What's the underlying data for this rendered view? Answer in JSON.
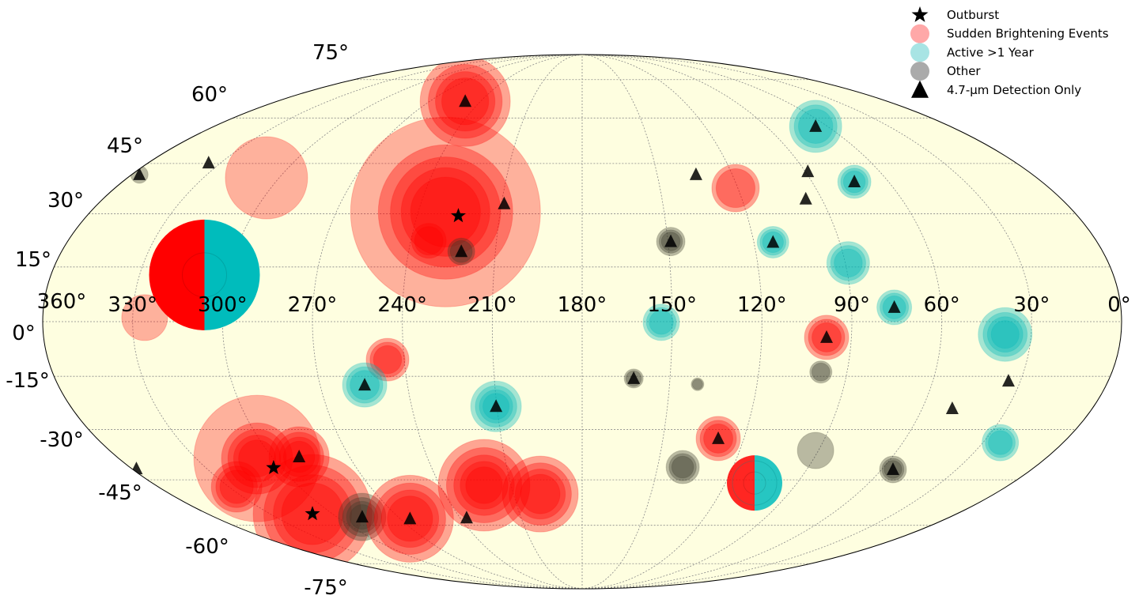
{
  "chart_data": {
    "type": "scatter",
    "projection": "mollweide",
    "grid": true,
    "x_reversed": true,
    "lon_ticks": [
      "360°",
      "330°",
      "300°",
      "270°",
      "240°",
      "210°",
      "180°",
      "150°",
      "120°",
      "90°",
      "60°",
      "30°",
      "0°"
    ],
    "lat_ticks": [
      "75°",
      "60°",
      "45°",
      "30°",
      "15°",
      "0°",
      "-15°",
      "-30°",
      "-45°",
      "-60°",
      "-75°"
    ],
    "legend": {
      "placement": "top-right",
      "entries": [
        {
          "label": "Outburst",
          "symbol": "star",
          "color": "#000000"
        },
        {
          "label": "Sudden Brightening Events",
          "symbol": "circle",
          "color": "#ffa8a8"
        },
        {
          "label": "Active >1 Year",
          "symbol": "circle",
          "color": "#a8e4e4"
        },
        {
          "label": "Other",
          "symbol": "circle",
          "color": "#aaaaaa"
        },
        {
          "label": "4.7-μm Detection Only",
          "symbol": "triangle",
          "color": "#000000"
        }
      ]
    },
    "colors": {
      "sudden": "#ff0000",
      "active": "#00b8b8",
      "other": "#3a3a2a",
      "background": "#fefee0"
    },
    "sources": [
      {
        "lon": 249,
        "lat": 66.1,
        "type": "sudden",
        "size": 57,
        "rings": 4
      },
      {
        "lon": 305,
        "lat": 40.6,
        "type": "sudden",
        "size": 52,
        "rings": 1
      },
      {
        "lon": 230,
        "lat": 30.5,
        "type": "sudden",
        "size": 120,
        "rings": 1
      },
      {
        "lon": 230,
        "lat": 30.5,
        "type": "sudden",
        "size": 85,
        "rings": 4
      },
      {
        "lon": 233.7,
        "lat": 22.3,
        "type": "sudden",
        "size": 22,
        "rings": 2
      },
      {
        "lon": 221.8,
        "lat": 19.3,
        "type": "other",
        "size": 17,
        "rings": 2
      },
      {
        "lon": 308,
        "lat": 12.8,
        "type": "split",
        "size": 70,
        "rings": 1
      },
      {
        "lon": 326,
        "lat": 1.1,
        "type": "sudden",
        "size": 29,
        "rings": 1
      },
      {
        "lon": 357,
        "lat": 41.6,
        "type": "other",
        "size": 11,
        "rings": 1
      },
      {
        "lon": 120.9,
        "lat": 37.5,
        "type": "sudden",
        "size": 30,
        "rings": 2
      },
      {
        "lon": 65.8,
        "lat": 57.1,
        "type": "active",
        "size": 33,
        "rings": 3
      },
      {
        "lon": 73.4,
        "lat": 39.4,
        "type": "active",
        "size": 21,
        "rings": 3
      },
      {
        "lon": 149,
        "lat": 22.1,
        "type": "other",
        "size": 18,
        "rings": 3
      },
      {
        "lon": 113.3,
        "lat": 21.9,
        "type": "active",
        "size": 20,
        "rings": 3
      },
      {
        "lon": 89,
        "lat": 16.1,
        "type": "active",
        "size": 27,
        "rings": 3
      },
      {
        "lon": 75.7,
        "lat": 3.9,
        "type": "active",
        "size": 22,
        "rings": 3
      },
      {
        "lon": 153.6,
        "lat": -0.2,
        "type": "active",
        "size": 23,
        "rings": 3
      },
      {
        "lon": 38.7,
        "lat": -3.5,
        "type": "active",
        "size": 34,
        "rings": 4
      },
      {
        "lon": 98.3,
        "lat": -4.3,
        "type": "sudden",
        "size": 28,
        "rings": 3
      },
      {
        "lon": 245.6,
        "lat": -10.4,
        "type": "sudden",
        "size": 27,
        "rings": 3
      },
      {
        "lon": 254.7,
        "lat": -17.4,
        "type": "active",
        "size": 28,
        "rings": 3
      },
      {
        "lon": 210.3,
        "lat": -23.4,
        "type": "active",
        "size": 32,
        "rings": 4
      },
      {
        "lon": 162.4,
        "lat": -15.6,
        "type": "other",
        "size": 12,
        "rings": 2
      },
      {
        "lon": 140.4,
        "lat": -17.2,
        "type": "other",
        "size": 8,
        "rings": 2
      },
      {
        "lon": 98.9,
        "lat": -13.8,
        "type": "other",
        "size": 14,
        "rings": 2
      },
      {
        "lon": 129.5,
        "lat": -32.6,
        "type": "sudden",
        "size": 28,
        "rings": 3
      },
      {
        "lon": 91.1,
        "lat": -36.1,
        "type": "other",
        "size": 23,
        "rings": 1
      },
      {
        "lon": 23.5,
        "lat": -33.8,
        "type": "active",
        "size": 23,
        "rings": 3
      },
      {
        "lon": 140,
        "lat": -41.1,
        "type": "other",
        "size": 21,
        "rings": 3
      },
      {
        "lon": 107.8,
        "lat": -46,
        "type": "split",
        "size": 35,
        "rings": 2
      },
      {
        "lon": 55.5,
        "lat": -41.8,
        "type": "other",
        "size": 17,
        "rings": 3
      },
      {
        "lon": 306.3,
        "lat": -38.5,
        "type": "sudden",
        "size": 80,
        "rings": 1
      },
      {
        "lon": 306.3,
        "lat": -38.5,
        "type": "sudden",
        "size": 45,
        "rings": 4
      },
      {
        "lon": 289.5,
        "lat": -38,
        "type": "sudden",
        "size": 38,
        "rings": 4
      },
      {
        "lon": 326.7,
        "lat": -47.2,
        "type": "sudden",
        "size": 32,
        "rings": 3
      },
      {
        "lon": 309.5,
        "lat": -56,
        "type": "sudden",
        "size": 75,
        "rings": 4
      },
      {
        "lon": 287.6,
        "lat": -57.1,
        "type": "other",
        "size": 30,
        "rings": 4
      },
      {
        "lon": 265.1,
        "lat": -57.7,
        "type": "sudden",
        "size": 55,
        "rings": 4
      },
      {
        "lon": 221.4,
        "lat": -46.7,
        "type": "sudden",
        "size": 58,
        "rings": 5
      },
      {
        "lon": 198.3,
        "lat": -49.5,
        "type": "sudden",
        "size": 48,
        "rings": 4
      }
    ],
    "outbursts": [
      {
        "lon": 225,
        "lat": 29.4
      },
      {
        "lon": 303,
        "lat": -41.3
      },
      {
        "lon": 309.5,
        "lat": -56
      }
    ],
    "detections_4_7um": [
      {
        "lon": 249,
        "lat": 66.1
      },
      {
        "lon": 221.8,
        "lat": 19.3
      },
      {
        "lon": 357,
        "lat": 41.6
      },
      {
        "lon": 335,
        "lat": 45.2
      },
      {
        "lon": 209,
        "lat": 32.9
      },
      {
        "lon": 65.8,
        "lat": 57.1
      },
      {
        "lon": 73.4,
        "lat": 39.4
      },
      {
        "lon": 134.5,
        "lat": 41.6
      },
      {
        "lon": 89,
        "lat": 42.5
      },
      {
        "lon": 96,
        "lat": 34.3
      },
      {
        "lon": 149,
        "lat": 22.1
      },
      {
        "lon": 113.3,
        "lat": 21.9
      },
      {
        "lon": 75.7,
        "lat": 3.9
      },
      {
        "lon": 98.3,
        "lat": -4.3
      },
      {
        "lon": 254.7,
        "lat": -17.4
      },
      {
        "lon": 210.3,
        "lat": -23.4
      },
      {
        "lon": 162.4,
        "lat": -15.6
      },
      {
        "lon": 34.1,
        "lat": -16.3
      },
      {
        "lon": 49.4,
        "lat": -24
      },
      {
        "lon": 129.5,
        "lat": -32.6
      },
      {
        "lon": 55.5,
        "lat": -41.8
      },
      {
        "lon": 289.5,
        "lat": -38
      },
      {
        "lon": 287.6,
        "lat": -57.1
      },
      {
        "lon": 265.1,
        "lat": -57.7
      },
      {
        "lon": 236.8,
        "lat": -57.4
      },
      {
        "lon": 358.2,
        "lat": -41.6
      }
    ]
  }
}
